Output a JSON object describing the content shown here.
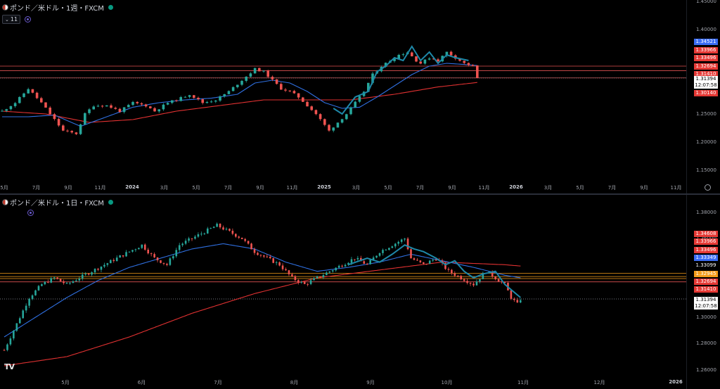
{
  "colors": {
    "bull": "#26a69a",
    "bear": "#ef5350",
    "ma_fast": "#2f6fe0",
    "ma_slow": "#e03131",
    "zigzag": "#1e88a8",
    "hline_red": "#e05252",
    "hline_orange": "#f59c1a"
  },
  "top_chart": {
    "title": "ポンド／米ドル・1週・FXCM",
    "indicator_count": "11",
    "chart_data": {
      "type": "candlestick",
      "timeframe": "weekly",
      "ylim": [
        1.13,
        1.45
      ],
      "y_ticks": [
        "1.45000",
        "1.40000",
        "1.35000",
        "1.30000",
        "1.25000",
        "1.20000",
        "1.15000"
      ],
      "x_ticks": [
        "5月",
        "7月",
        "9月",
        "11月",
        "2024",
        "3月",
        "5月",
        "7月",
        "9月",
        "11月",
        "2025",
        "3月",
        "5月",
        "7月",
        "9月",
        "11月",
        "2026",
        "3月",
        "5月",
        "7月",
        "9月",
        "11月"
      ],
      "close_path": [
        [
          0,
          1.255
        ],
        [
          3,
          1.27
        ],
        [
          6,
          1.295
        ],
        [
          9,
          1.27
        ],
        [
          11,
          1.25
        ],
        [
          14,
          1.22
        ],
        [
          17,
          1.215
        ],
        [
          19,
          1.25
        ],
        [
          21,
          1.265
        ],
        [
          24,
          1.265
        ],
        [
          27,
          1.255
        ],
        [
          30,
          1.27
        ],
        [
          33,
          1.265
        ],
        [
          35,
          1.255
        ],
        [
          38,
          1.27
        ],
        [
          40,
          1.275
        ],
        [
          43,
          1.285
        ],
        [
          46,
          1.27
        ],
        [
          49,
          1.275
        ],
        [
          52,
          1.29
        ],
        [
          55,
          1.31
        ],
        [
          58,
          1.33
        ],
        [
          60,
          1.325
        ],
        [
          62,
          1.31
        ],
        [
          64,
          1.295
        ],
        [
          66,
          1.29
        ],
        [
          68,
          1.28
        ],
        [
          70,
          1.265
        ],
        [
          72,
          1.25
        ],
        [
          74,
          1.23
        ],
        [
          75,
          1.22
        ],
        [
          77,
          1.235
        ],
        [
          79,
          1.25
        ],
        [
          81,
          1.27
        ],
        [
          83,
          1.29
        ],
        [
          85,
          1.32
        ],
        [
          87,
          1.335
        ],
        [
          89,
          1.345
        ],
        [
          91,
          1.355
        ],
        [
          93,
          1.36
        ],
        [
          95,
          1.345
        ],
        [
          96,
          1.34
        ],
        [
          98,
          1.35
        ],
        [
          100,
          1.345
        ],
        [
          102,
          1.36
        ],
        [
          104,
          1.35
        ],
        [
          106,
          1.34
        ],
        [
          108,
          1.335
        ],
        [
          109,
          1.3139
        ]
      ],
      "ma_fast_path": [
        [
          0,
          1.245
        ],
        [
          6,
          1.245
        ],
        [
          12,
          1.248
        ],
        [
          18,
          1.228
        ],
        [
          24,
          1.245
        ],
        [
          30,
          1.262
        ],
        [
          36,
          1.27
        ],
        [
          42,
          1.275
        ],
        [
          48,
          1.278
        ],
        [
          54,
          1.285
        ],
        [
          58,
          1.305
        ],
        [
          62,
          1.31
        ],
        [
          66,
          1.305
        ],
        [
          70,
          1.29
        ],
        [
          74,
          1.27
        ],
        [
          78,
          1.26
        ],
        [
          82,
          1.262
        ],
        [
          86,
          1.28
        ],
        [
          90,
          1.3
        ],
        [
          94,
          1.32
        ],
        [
          98,
          1.335
        ],
        [
          102,
          1.34
        ],
        [
          106,
          1.338
        ],
        [
          109,
          1.336
        ]
      ],
      "ma_slow_path": [
        [
          0,
          1.255
        ],
        [
          10,
          1.25
        ],
        [
          20,
          1.235
        ],
        [
          30,
          1.24
        ],
        [
          40,
          1.255
        ],
        [
          50,
          1.265
        ],
        [
          60,
          1.275
        ],
        [
          70,
          1.275
        ],
        [
          80,
          1.275
        ],
        [
          90,
          1.285
        ],
        [
          100,
          1.298
        ],
        [
          109,
          1.306
        ]
      ],
      "zigzag_path": [
        [
          76,
          1.26
        ],
        [
          78,
          1.25
        ],
        [
          81,
          1.28
        ],
        [
          84,
          1.29
        ],
        [
          86,
          1.325
        ],
        [
          88,
          1.335
        ],
        [
          90,
          1.35
        ],
        [
          92,
          1.345
        ],
        [
          94,
          1.37
        ],
        [
          96,
          1.345
        ],
        [
          98,
          1.36
        ],
        [
          100,
          1.34
        ],
        [
          102,
          1.355
        ],
        [
          104,
          1.35
        ],
        [
          107,
          1.345
        ]
      ],
      "horizontal_lines": [
        {
          "value": 1.33496,
          "color": "red"
        },
        {
          "value": 1.32694,
          "color": "red"
        },
        {
          "value": 1.3141,
          "color": "red"
        },
        {
          "value": 1.31394,
          "color": "dotted"
        }
      ],
      "price_tags": [
        {
          "label": "1.34521",
          "value": 1.34521,
          "bg": "#3a6cf4"
        },
        {
          "label": "1.33966",
          "value": 1.33966,
          "bg": "#e53935"
        },
        {
          "label": "1.33496",
          "value": 1.33496,
          "bg": "#e53935"
        },
        {
          "label": "1.32694",
          "value": 1.32694,
          "bg": "#e53935"
        },
        {
          "label": "1.31410",
          "value": 1.3141,
          "bg": "#e53935"
        },
        {
          "label": "1.30140",
          "value": 1.3014,
          "bg": "#e53935"
        }
      ],
      "last_price": "1.31394",
      "countdown": "12:07:58"
    }
  },
  "bottom_chart": {
    "title": "ポンド／米ドル・1日・FXCM",
    "chart_data": {
      "type": "candlestick",
      "timeframe": "daily",
      "ylim": [
        1.255,
        1.39
      ],
      "y_ticks": [
        "1.38000",
        "1.36000",
        "1.34000",
        "1.32000",
        "1.30000",
        "1.28000",
        "1.26000"
      ],
      "x_ticks": [
        "5月",
        "6月",
        "7月",
        "8月",
        "9月",
        "10月",
        "11月",
        "12月",
        "2026"
      ],
      "close_path": [
        [
          0,
          1.275
        ],
        [
          4,
          1.295
        ],
        [
          8,
          1.315
        ],
        [
          12,
          1.325
        ],
        [
          16,
          1.33
        ],
        [
          20,
          1.325
        ],
        [
          24,
          1.33
        ],
        [
          28,
          1.335
        ],
        [
          32,
          1.34
        ],
        [
          36,
          1.345
        ],
        [
          40,
          1.35
        ],
        [
          44,
          1.355
        ],
        [
          48,
          1.345
        ],
        [
          52,
          1.34
        ],
        [
          56,
          1.355
        ],
        [
          60,
          1.36
        ],
        [
          64,
          1.365
        ],
        [
          68,
          1.37
        ],
        [
          72,
          1.365
        ],
        [
          76,
          1.36
        ],
        [
          80,
          1.35
        ],
        [
          84,
          1.345
        ],
        [
          88,
          1.34
        ],
        [
          92,
          1.33
        ],
        [
          96,
          1.325
        ],
        [
          100,
          1.33
        ],
        [
          104,
          1.335
        ],
        [
          108,
          1.34
        ],
        [
          112,
          1.345
        ],
        [
          116,
          1.34
        ],
        [
          120,
          1.35
        ],
        [
          124,
          1.355
        ],
        [
          128,
          1.36
        ],
        [
          130,
          1.345
        ],
        [
          134,
          1.34
        ],
        [
          138,
          1.345
        ],
        [
          142,
          1.335
        ],
        [
          146,
          1.33
        ],
        [
          150,
          1.325
        ],
        [
          154,
          1.335
        ],
        [
          157,
          1.33
        ],
        [
          160,
          1.325
        ],
        [
          162,
          1.315
        ],
        [
          164,
          1.31
        ],
        [
          165,
          1.3139
        ]
      ],
      "ma_fast_path": [
        [
          0,
          1.285
        ],
        [
          10,
          1.3
        ],
        [
          20,
          1.315
        ],
        [
          30,
          1.328
        ],
        [
          40,
          1.338
        ],
        [
          50,
          1.345
        ],
        [
          60,
          1.352
        ],
        [
          70,
          1.356
        ],
        [
          80,
          1.352
        ],
        [
          90,
          1.342
        ],
        [
          100,
          1.335
        ],
        [
          110,
          1.338
        ],
        [
          120,
          1.342
        ],
        [
          130,
          1.348
        ],
        [
          140,
          1.343
        ],
        [
          150,
          1.338
        ],
        [
          160,
          1.332
        ],
        [
          165,
          1.33
        ]
      ],
      "ma_slow_path": [
        [
          0,
          1.263
        ],
        [
          20,
          1.27
        ],
        [
          40,
          1.285
        ],
        [
          60,
          1.303
        ],
        [
          80,
          1.318
        ],
        [
          100,
          1.33
        ],
        [
          120,
          1.336
        ],
        [
          140,
          1.342
        ],
        [
          160,
          1.34
        ],
        [
          165,
          1.339
        ]
      ],
      "zigzag_path": [
        [
          110,
          1.34
        ],
        [
          116,
          1.345
        ],
        [
          120,
          1.342
        ],
        [
          124,
          1.348
        ],
        [
          128,
          1.355
        ],
        [
          131,
          1.352
        ],
        [
          134,
          1.35
        ],
        [
          138,
          1.345
        ],
        [
          141,
          1.34
        ],
        [
          144,
          1.343
        ],
        [
          147,
          1.335
        ],
        [
          150,
          1.33
        ],
        [
          153,
          1.333
        ],
        [
          157,
          1.335
        ],
        [
          160,
          1.325
        ],
        [
          165,
          1.315
        ]
      ],
      "horizontal_lines": [
        {
          "value": 1.33349,
          "color": "orange"
        },
        {
          "value": 1.33099,
          "color": "orange"
        },
        {
          "value": 1.32945,
          "color": "orange"
        },
        {
          "value": 1.32694,
          "color": "red"
        },
        {
          "value": 1.31394,
          "color": "dotted"
        }
      ],
      "price_tags": [
        {
          "label": "1.34608",
          "value": 1.34608,
          "bg": "#e53935"
        },
        {
          "label": "1.33966",
          "value": 1.33966,
          "bg": "#e53935"
        },
        {
          "label": "1.33496",
          "value": 1.33496,
          "bg": "#e53935"
        },
        {
          "label": "1.33349",
          "value": 1.33349,
          "bg": "#3a6cf4"
        },
        {
          "label": "1.33099",
          "value": 1.33099,
          "bg": "#000000"
        },
        {
          "label": "1.32945",
          "value": 1.32945,
          "bg": "#f59c1a"
        },
        {
          "label": "1.32694",
          "value": 1.32694,
          "bg": "#e53935"
        },
        {
          "label": "1.31410",
          "value": 1.3141,
          "bg": "#e53935"
        }
      ],
      "last_price": "1.31394",
      "countdown": "12:07:58"
    }
  }
}
